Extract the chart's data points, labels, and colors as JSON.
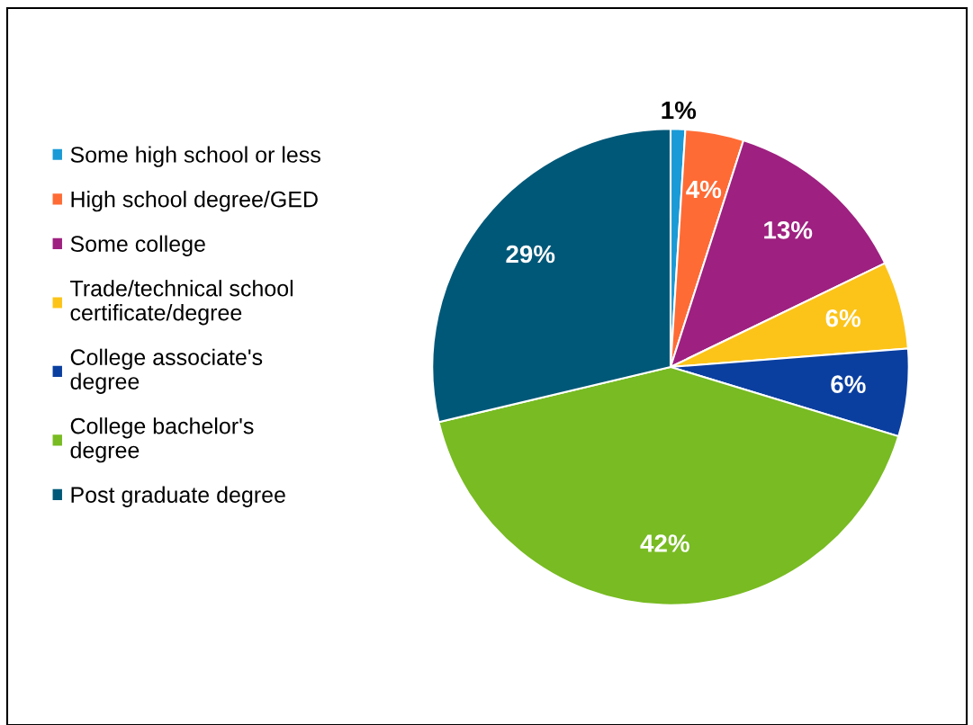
{
  "chart_data": {
    "type": "pie",
    "categories": [
      "Some high school or less",
      "High school degree/GED",
      "Some college",
      "Trade/technical school\ncertificate/degree",
      "College associate's\ndegree",
      "College bachelor's\ndegree",
      "Post graduate degree"
    ],
    "values": [
      1,
      4,
      13,
      6,
      6,
      42,
      29
    ],
    "colors": [
      "#1a9ad6",
      "#ff6b35",
      "#9e2080",
      "#fcc419",
      "#0a3fa0",
      "#78bb22",
      "#005878"
    ],
    "value_labels": [
      "1%",
      "4%",
      "13%",
      "6%",
      "6%",
      "42%",
      "29%"
    ],
    "legend": "left"
  }
}
